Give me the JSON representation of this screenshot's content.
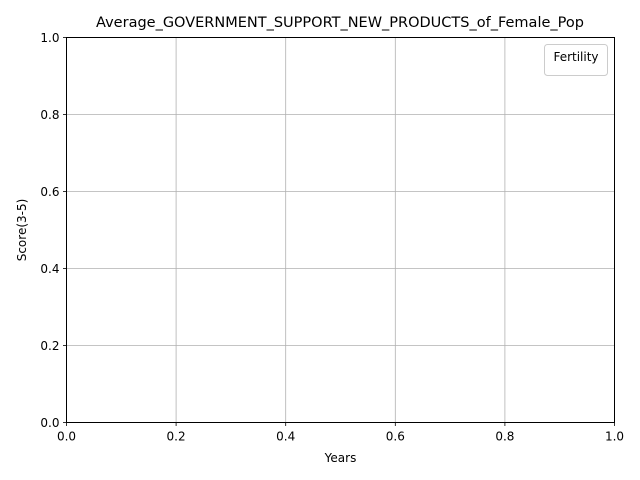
{
  "chart_data": {
    "type": "line",
    "title": "Average_GOVERNMENT_SUPPORT_NEW_PRODUCTS_of_Female_Pop",
    "xlabel": "Years",
    "ylabel": "Score(3-5)",
    "xlim": [
      0.0,
      1.0
    ],
    "ylim": [
      0.0,
      1.0
    ],
    "x_ticks": [
      "0.0",
      "0.2",
      "0.4",
      "0.6",
      "0.8",
      "1.0"
    ],
    "y_ticks": [
      "0.0",
      "0.2",
      "0.4",
      "0.6",
      "0.8",
      "1.0"
    ],
    "grid": true,
    "legend": {
      "title": "Fertility",
      "placement": "top-right",
      "entries": []
    },
    "series": []
  }
}
